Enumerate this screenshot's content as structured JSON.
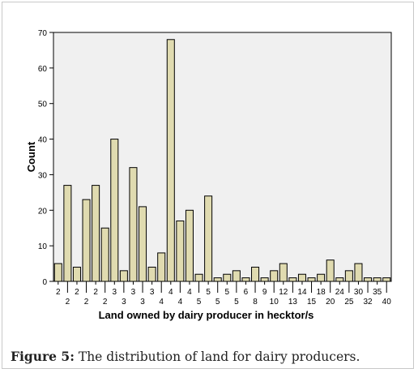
{
  "chart_data": {
    "type": "bar",
    "xlabel": "Land owned by dairy producer in hecktor/s",
    "ylabel": "Count",
    "ylim": [
      0,
      70
    ],
    "yticks": [
      0,
      10,
      20,
      30,
      40,
      50,
      60,
      70
    ],
    "grid": false,
    "bar_color": "#e0dbb0",
    "plot_background": "#f0f0f0",
    "categories": [
      "2",
      "2",
      "2",
      "2",
      "2",
      "2",
      "3",
      "3",
      "3",
      "3",
      "3",
      "4",
      "4",
      "4",
      "4",
      "5",
      "5",
      "5",
      "5",
      "5",
      "6",
      "8",
      "9",
      "10",
      "12",
      "13",
      "14",
      "15",
      "18",
      "20",
      "24",
      "25",
      "30",
      "32",
      "35",
      "40"
    ],
    "values": [
      5,
      27,
      4,
      23,
      27,
      15,
      40,
      3,
      32,
      21,
      4,
      8,
      68,
      17,
      20,
      2,
      24,
      1,
      2,
      3,
      1,
      4,
      1,
      3,
      5,
      1,
      2,
      1,
      2,
      6,
      1,
      3,
      5,
      1,
      1,
      1
    ]
  },
  "caption": {
    "label": "Figure 5:",
    "text": " The distribution of land for dairy producers."
  }
}
